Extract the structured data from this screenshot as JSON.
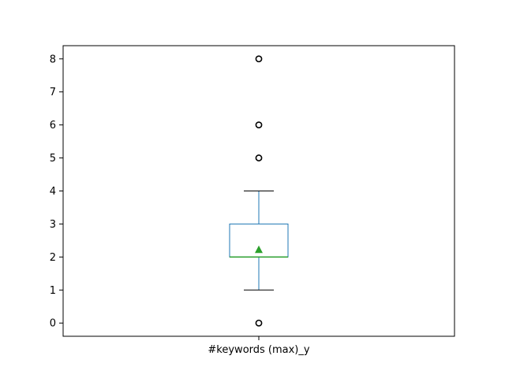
{
  "chart_data": {
    "type": "box",
    "categories": [
      "#keywords (max)_y"
    ],
    "y_ticks": [
      0,
      1,
      2,
      3,
      4,
      5,
      6,
      7,
      8
    ],
    "ylim": [
      -0.4,
      8.4
    ],
    "grid": false,
    "legend": "none",
    "series": [
      {
        "whisker_low": 1,
        "q1": 2,
        "median": 2,
        "q3": 3,
        "whisker_high": 4,
        "mean": 2.23,
        "outliers": [
          0,
          5,
          6,
          8
        ]
      }
    ],
    "colors": {
      "box": "#1f77b4",
      "median": "#2ca02c",
      "mean": "#2ca02c",
      "whisker_cap": "#000000",
      "outlier": "#000000",
      "axes": "#000000"
    }
  }
}
